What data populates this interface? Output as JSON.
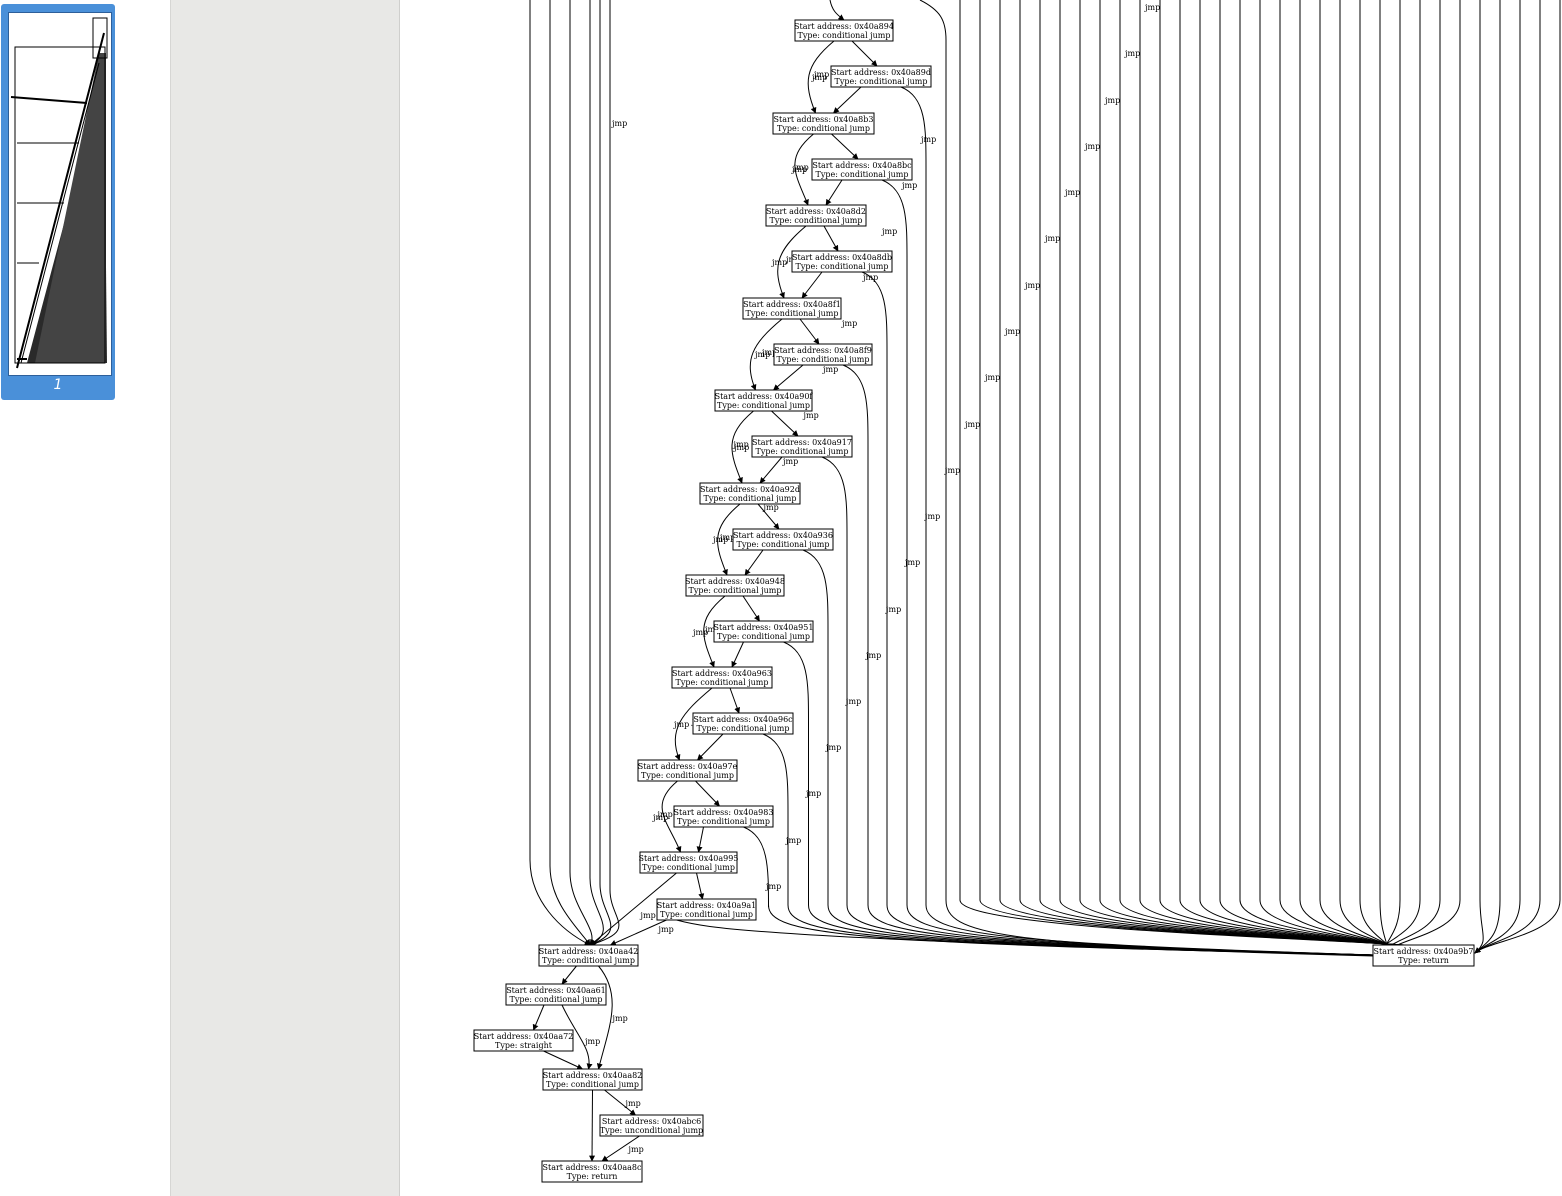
{
  "sidebar": {
    "thumbnail_page_label": "1"
  },
  "graph": {
    "nodes": [
      {
        "id": "n894",
        "addr": "Start address: 0x40a894",
        "type": "Type: conditional jump"
      },
      {
        "id": "n89d",
        "addr": "Start address: 0x40a89d",
        "type": "Type: conditional jump"
      },
      {
        "id": "n8b3",
        "addr": "Start address: 0x40a8b3",
        "type": "Type: conditional jump"
      },
      {
        "id": "n8bc",
        "addr": "Start address: 0x40a8bc",
        "type": "Type: conditional jump"
      },
      {
        "id": "n8d2",
        "addr": "Start address: 0x40a8d2",
        "type": "Type: conditional jump"
      },
      {
        "id": "n8db",
        "addr": "Start address: 0x40a8db",
        "type": "Type: conditional jump"
      },
      {
        "id": "n8f1",
        "addr": "Start address: 0x40a8f1",
        "type": "Type: conditional jump"
      },
      {
        "id": "n8f9",
        "addr": "Start address: 0x40a8f9",
        "type": "Type: conditional jump"
      },
      {
        "id": "n90f",
        "addr": "Start address: 0x40a90f",
        "type": "Type: conditional jump"
      },
      {
        "id": "n917",
        "addr": "Start address: 0x40a917",
        "type": "Type: conditional jump"
      },
      {
        "id": "n92d",
        "addr": "Start address: 0x40a92d",
        "type": "Type: conditional jump"
      },
      {
        "id": "n936",
        "addr": "Start address: 0x40a936",
        "type": "Type: conditional jump"
      },
      {
        "id": "n948",
        "addr": "Start address: 0x40a948",
        "type": "Type: conditional jump"
      },
      {
        "id": "n951",
        "addr": "Start address: 0x40a951",
        "type": "Type: conditional jump"
      },
      {
        "id": "n963",
        "addr": "Start address: 0x40a963",
        "type": "Type: conditional jump"
      },
      {
        "id": "n96c",
        "addr": "Start address: 0x40a96c",
        "type": "Type: conditional jump"
      },
      {
        "id": "n97e",
        "addr": "Start address: 0x40a97e",
        "type": "Type: conditional jump"
      },
      {
        "id": "n983",
        "addr": "Start address: 0x40a983",
        "type": "Type: conditional jump"
      },
      {
        "id": "n995",
        "addr": "Start address: 0x40a995",
        "type": "Type: conditional jump"
      },
      {
        "id": "n9a1",
        "addr": "Start address: 0x40a9a1",
        "type": "Type: conditional jump"
      },
      {
        "id": "na42",
        "addr": "Start address: 0x40aa42",
        "type": "Type: conditional jump"
      },
      {
        "id": "na61",
        "addr": "Start address: 0x40aa61",
        "type": "Type: conditional jump"
      },
      {
        "id": "na72",
        "addr": "Start address: 0x40aa72",
        "type": "Type: straight"
      },
      {
        "id": "na82",
        "addr": "Start address: 0x40aa82",
        "type": "Type: conditional jump"
      },
      {
        "id": "nabc6",
        "addr": "Start address: 0x40abc6",
        "type": "Type: unconditional jump"
      },
      {
        "id": "na8c",
        "addr": "Start address: 0x40aa8c",
        "type": "Type: return"
      },
      {
        "id": "n9b7",
        "addr": "Start address: 0x40a9b7",
        "type": "Type: return"
      }
    ],
    "edge_label": "jmp"
  }
}
